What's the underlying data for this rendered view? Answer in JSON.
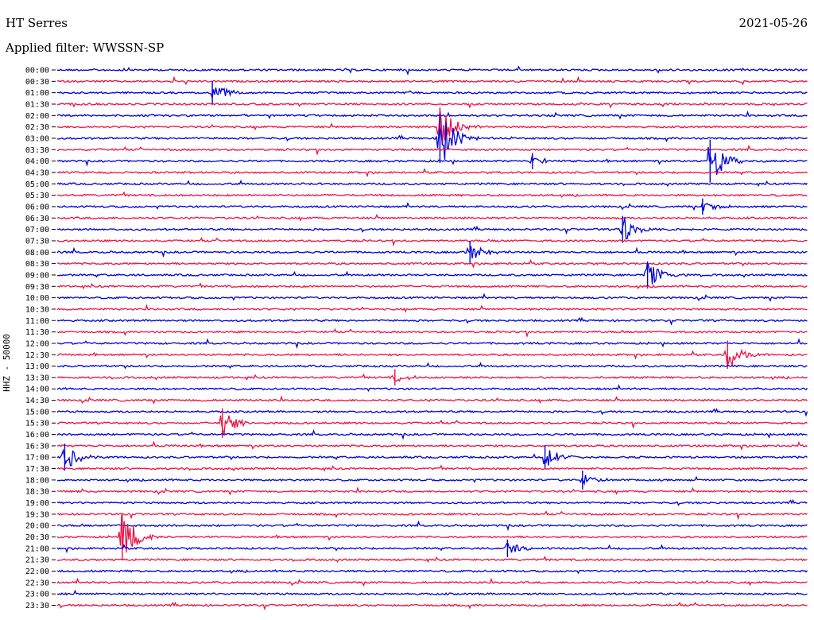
{
  "header": {
    "station": "HT Serres",
    "date": "2021-05-26",
    "filter": "Applied filter: WWSSN-SP"
  },
  "chart_data": {
    "type": "line",
    "title": "HT Serres",
    "subtitle": "Applied filter: WWSSN-SP",
    "date": "2021-05-26",
    "ylabel": "HHZ - 50000",
    "xlabel": "",
    "grid": false,
    "colors": {
      "even_row": "#0000dd",
      "odd_row": "#ee1144"
    },
    "rows": [
      "00:00",
      "00:30",
      "01:00",
      "01:30",
      "02:00",
      "02:30",
      "03:00",
      "03:30",
      "04:00",
      "04:30",
      "05:00",
      "05:30",
      "06:00",
      "06:30",
      "07:00",
      "07:30",
      "08:00",
      "08:30",
      "09:00",
      "09:30",
      "10:00",
      "10:30",
      "11:00",
      "11:30",
      "12:00",
      "12:30",
      "13:00",
      "13:30",
      "14:00",
      "14:30",
      "15:00",
      "15:30",
      "16:00",
      "16:30",
      "17:00",
      "17:30",
      "18:00",
      "18:30",
      "19:00",
      "19:30",
      "20:00",
      "20:30",
      "21:00",
      "21:30",
      "22:00",
      "22:30",
      "23:00",
      "23:30"
    ],
    "events": [
      {
        "row": "01:00",
        "minute": 6.2,
        "amplitude": 1.0
      },
      {
        "row": "02:30",
        "minute": 15.3,
        "amplitude": 2.2
      },
      {
        "row": "03:00",
        "minute": 15.3,
        "amplitude": 3.0
      },
      {
        "row": "04:00",
        "minute": 26.1,
        "amplitude": 2.5
      },
      {
        "row": "04:00",
        "minute": 19.0,
        "amplitude": 0.5
      },
      {
        "row": "06:00",
        "minute": 25.8,
        "amplitude": 0.5
      },
      {
        "row": "07:00",
        "minute": 22.6,
        "amplitude": 1.3
      },
      {
        "row": "08:00",
        "minute": 16.5,
        "amplitude": 1.0
      },
      {
        "row": "09:00",
        "minute": 23.6,
        "amplitude": 1.3
      },
      {
        "row": "12:30",
        "minute": 26.8,
        "amplitude": 1.4
      },
      {
        "row": "13:30",
        "minute": 13.5,
        "amplitude": 0.5
      },
      {
        "row": "15:30",
        "minute": 6.6,
        "amplitude": 1.5
      },
      {
        "row": "17:00",
        "minute": 0.3,
        "amplitude": 1.3
      },
      {
        "row": "17:00",
        "minute": 19.5,
        "amplitude": 1.0
      },
      {
        "row": "18:00",
        "minute": 21.0,
        "amplitude": 0.7
      },
      {
        "row": "20:30",
        "minute": 2.6,
        "amplitude": 2.8
      },
      {
        "row": "21:00",
        "minute": 18.0,
        "amplitude": 0.6
      }
    ]
  }
}
